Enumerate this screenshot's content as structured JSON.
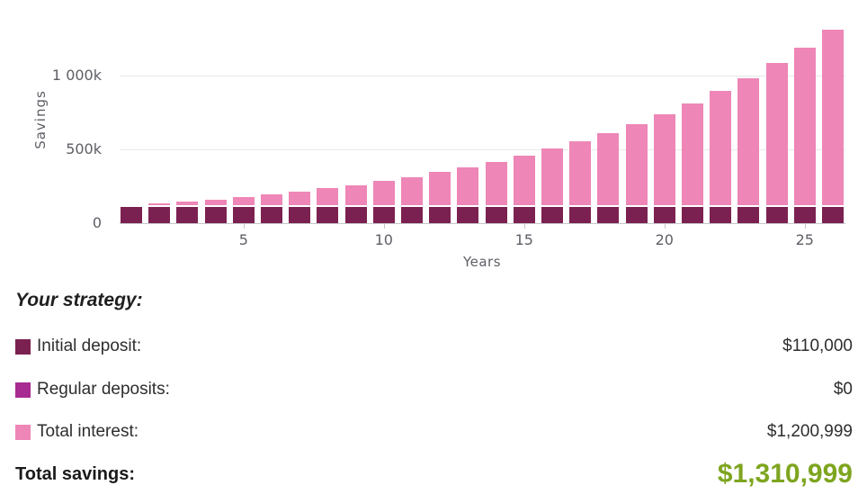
{
  "chart_data": {
    "type": "bar",
    "stacked": true,
    "title": "",
    "xlabel": "Years",
    "ylabel": "Savings",
    "grid": true,
    "ylim": [
      0,
      1350000
    ],
    "x": [
      1,
      2,
      3,
      4,
      5,
      6,
      7,
      8,
      9,
      10,
      11,
      12,
      13,
      14,
      15,
      16,
      17,
      18,
      19,
      20,
      21,
      22,
      23,
      24,
      25,
      26
    ],
    "xticks": [
      5,
      10,
      15,
      20,
      25
    ],
    "yticks": [
      {
        "value": 0,
        "label": "0"
      },
      {
        "value": 500000,
        "label": "500k"
      },
      {
        "value": 1000000,
        "label": "1 000k"
      }
    ],
    "series": [
      {
        "name": "Initial deposit",
        "color": "#7b2151",
        "values": [
          110000,
          110000,
          110000,
          110000,
          110000,
          110000,
          110000,
          110000,
          110000,
          110000,
          110000,
          110000,
          110000,
          110000,
          110000,
          110000,
          110000,
          110000,
          110000,
          110000,
          110000,
          110000,
          110000,
          110000,
          110000,
          110000
        ]
      },
      {
        "name": "Regular deposits",
        "color": "#a72b90",
        "values": [
          0,
          0,
          0,
          0,
          0,
          0,
          0,
          0,
          0,
          0,
          0,
          0,
          0,
          0,
          0,
          0,
          0,
          0,
          0,
          0,
          0,
          0,
          0,
          0,
          0,
          0
        ]
      },
      {
        "name": "Total interest",
        "color": "#ee86b7",
        "values": [
          11000,
          23100,
          36410,
          51051,
          67156,
          84872,
          104359,
          125795,
          149374,
          175312,
          203843,
          235227,
          269750,
          307725,
          349497,
          395447,
          445992,
          501591,
          562750,
          630025,
          704027,
          785430,
          874973,
          973470,
          1081817,
          1200999
        ]
      }
    ],
    "totals": [
      121000,
      133100,
      146410,
      161051,
      177156,
      194872,
      214359,
      235795,
      259374,
      285312,
      313843,
      345227,
      379750,
      417725,
      459497,
      505447,
      555992,
      611591,
      672750,
      740025,
      814027,
      895430,
      984973,
      1083470,
      1191817,
      1310999
    ]
  },
  "strategy": {
    "heading": "Your strategy:",
    "rows": [
      {
        "label": "Initial deposit:",
        "value": "$110,000",
        "color": "#7b2151"
      },
      {
        "label": "Regular deposits:",
        "value": "$0",
        "color": "#a72b90"
      },
      {
        "label": "Total interest:",
        "value": "$1,200,999",
        "color": "#ee86b7"
      }
    ],
    "total_label": "Total savings:",
    "total_value": "$1,310,999",
    "total_color": "#7ea51f"
  }
}
